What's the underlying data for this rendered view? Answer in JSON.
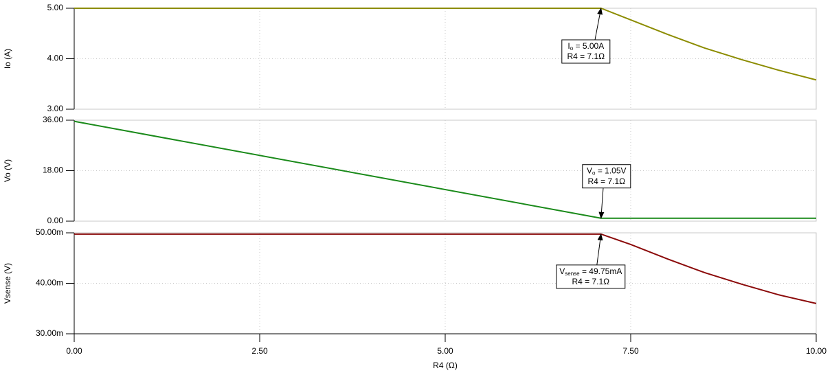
{
  "chart_data": [
    {
      "type": "line",
      "ylabel": "Io (A)",
      "ylim": [
        3,
        5
      ],
      "yticks": [
        {
          "value": 3,
          "label": "3.00"
        },
        {
          "value": 4,
          "label": "4.00"
        },
        {
          "value": 5,
          "label": "5.00"
        }
      ],
      "grid": true,
      "color": "#8c8c00",
      "label_color": "#000000",
      "x": [
        0,
        7.1,
        7.5,
        8,
        8.5,
        9,
        9.5,
        10
      ],
      "values": [
        5,
        5,
        4.77,
        4.48,
        4.21,
        3.98,
        3.77,
        3.58
      ],
      "annotation": {
        "x": 7.1,
        "y": 5,
        "base": "I",
        "sub": "o",
        "text": " = 5.00A",
        "line2": "R4 = 7.1Ω"
      }
    },
    {
      "type": "line",
      "ylabel": "Vo (V)",
      "ylim": [
        0,
        36
      ],
      "yticks": [
        {
          "value": 0,
          "label": "0.00"
        },
        {
          "value": 18,
          "label": "18.00"
        },
        {
          "value": 36,
          "label": "36.00"
        }
      ],
      "grid": true,
      "color": "#1a8a1a",
      "label_color": "#1a8a1a",
      "x": [
        0,
        7.1,
        10
      ],
      "values": [
        35.6,
        1.05,
        1.05
      ],
      "annotation": {
        "x": 7.1,
        "y": 1.05,
        "base": "V",
        "sub": "o",
        "text": " = 1.05V",
        "line2": "R4 = 7.1Ω"
      }
    },
    {
      "type": "line",
      "ylabel": "Vsense (V)",
      "ylim": [
        0.03,
        0.05
      ],
      "yticks": [
        {
          "value": 0.03,
          "label": "30.00m"
        },
        {
          "value": 0.04,
          "label": "40.00m"
        },
        {
          "value": 0.05,
          "label": "50.00m"
        }
      ],
      "grid": true,
      "color": "#8b0a0a",
      "label_color": "#8b0a0a",
      "x": [
        0,
        7.1,
        7.5,
        8,
        8.5,
        9,
        9.5,
        10
      ],
      "values": [
        0.04975,
        0.04975,
        0.0477,
        0.0448,
        0.0421,
        0.0398,
        0.0377,
        0.036
      ],
      "annotation": {
        "x": 7.1,
        "y": 0.04975,
        "base": "V",
        "sub": "sense",
        "text": " = 49.75mA",
        "line2": "R4 = 7.1Ω"
      },
      "xlabel": "R4 (Ω)",
      "xlim": [
        0,
        10
      ],
      "xticks": [
        {
          "value": 0,
          "label": "0.00"
        },
        {
          "value": 2.5,
          "label": "2.50"
        },
        {
          "value": 5,
          "label": "5.00"
        },
        {
          "value": 7.5,
          "label": "7.50"
        },
        {
          "value": 10,
          "label": "10.00"
        }
      ]
    }
  ]
}
